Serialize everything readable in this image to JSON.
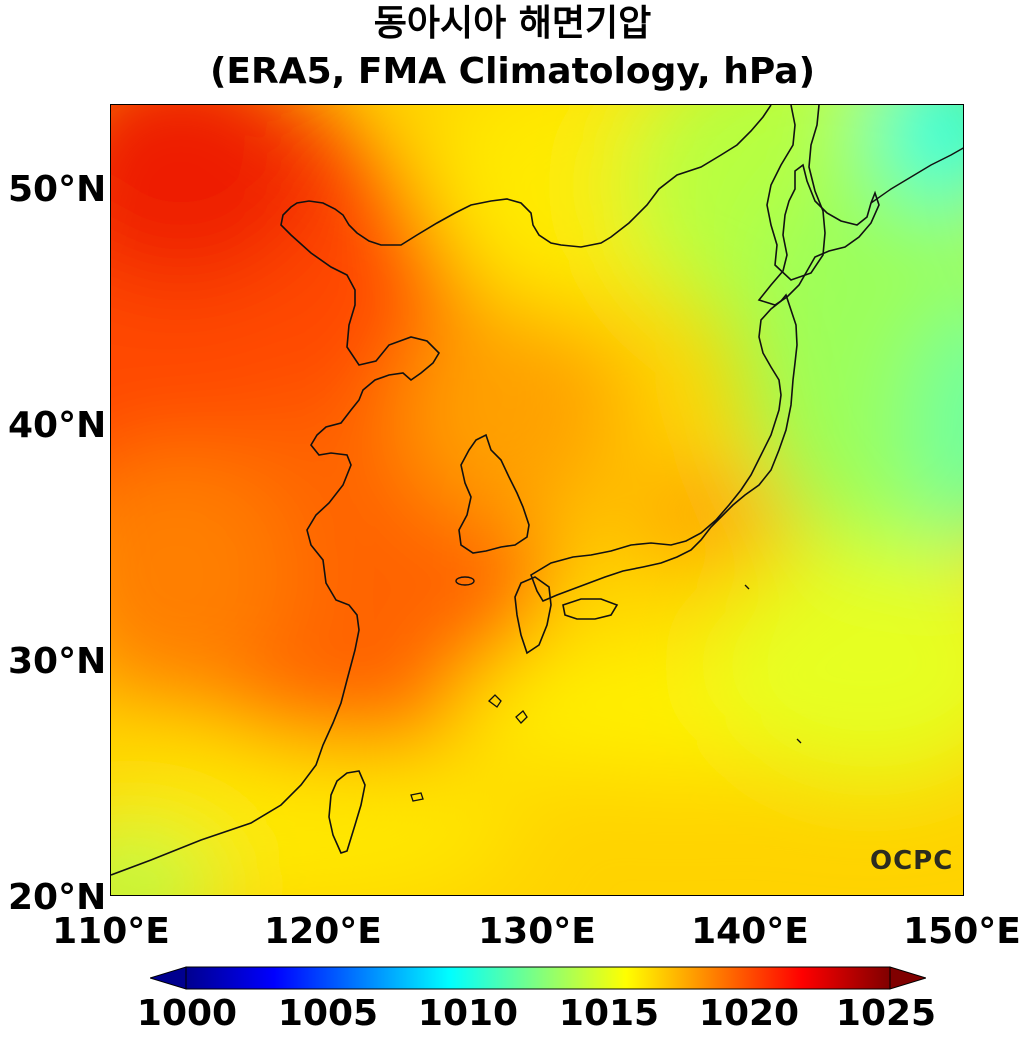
{
  "title": {
    "line1": "동아시아 해면기압",
    "line2": "(ERA5, FMA Climatology, hPa)"
  },
  "axes": {
    "lat_ticks": [
      "50°N",
      "40°N",
      "30°N",
      "20°N"
    ],
    "lon_ticks": [
      "110°E",
      "120°E",
      "130°E",
      "140°E",
      "150°E"
    ],
    "lon_range": [
      110,
      150
    ],
    "lat_range": [
      20,
      53.5
    ]
  },
  "colorbar": {
    "ticks": [
      "1000",
      "1005",
      "1010",
      "1015",
      "1020",
      "1025"
    ],
    "range": [
      1000,
      1025
    ],
    "colormap": "jet",
    "extend": "both"
  },
  "logo": "OCPC",
  "colors": {
    "coastline": "#111111",
    "frame": "#000000"
  }
}
